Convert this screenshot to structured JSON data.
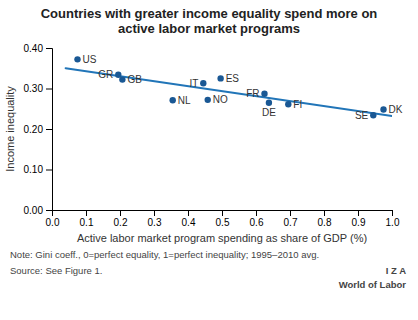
{
  "chart_data": {
    "type": "scatter",
    "title": "Countries with greater income equality spend more on\nactive labor market programs",
    "xlabel": "Active labor market program spending as share of GDP (%)",
    "ylabel": "Income inequality",
    "xlim": [
      0.0,
      1.0
    ],
    "ylim": [
      0.0,
      0.4
    ],
    "xticks": [
      {
        "value": 0.0,
        "label": "0.0"
      },
      0.1,
      0.2,
      0.3,
      0.4,
      0.5,
      0.6,
      0.7,
      0.8,
      0.9,
      {
        "value": 1.0,
        "label": "1.0"
      }
    ],
    "yticks": [
      {
        "value": 0.0,
        "label": "0.00"
      },
      {
        "value": 0.1,
        "label": "0.10"
      },
      {
        "value": 0.2,
        "label": "0.20"
      },
      {
        "value": 0.3,
        "label": "0.30"
      },
      {
        "value": 0.4,
        "label": "0.40"
      }
    ],
    "series": [
      {
        "type": "scatter",
        "color": "#1A5894",
        "labels": [
          "US",
          "GR",
          "GB",
          "NL",
          "IT",
          "NO",
          "ES",
          "FR",
          "DE",
          "FI",
          "SE",
          "DK"
        ],
        "x": [
          0.075,
          0.195,
          0.207,
          0.355,
          0.445,
          0.458,
          0.496,
          0.625,
          0.638,
          0.695,
          0.945,
          0.975
        ],
        "values": [
          0.372,
          0.334,
          0.322,
          0.271,
          0.313,
          0.272,
          0.325,
          0.287,
          0.265,
          0.261,
          0.234,
          0.248
        ]
      },
      {
        "type": "line",
        "color": "#2175B8",
        "x": [
          0.04,
          1.0
        ],
        "values": [
          0.35,
          0.232
        ]
      }
    ],
    "annotations": [
      "Note: Gini coeff., 0=perfect equality, 1=perfect inequality; 1995–2010 avg.",
      "Source: See Figure 1.",
      "I  Z  A",
      "World of Labor"
    ]
  }
}
